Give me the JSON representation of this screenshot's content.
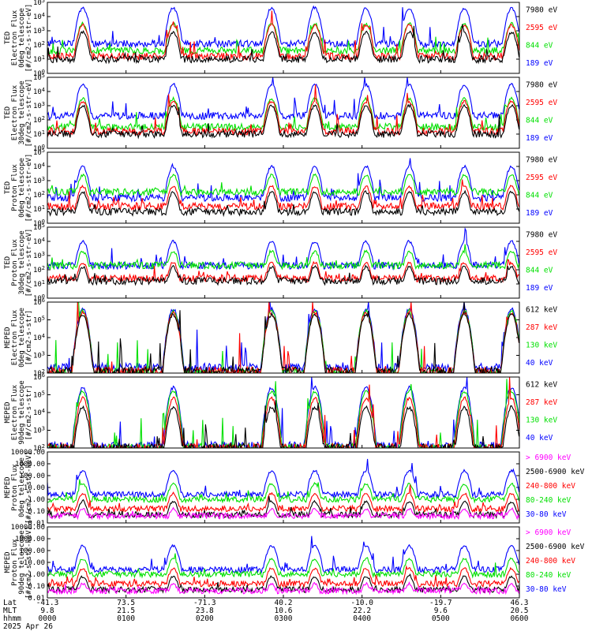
{
  "palette": {
    "blue": "#0000ff",
    "red": "#ff0000",
    "green": "#00e000",
    "black": "#000000",
    "magenta": "#ff00ff"
  },
  "chart_data": [
    {
      "type": "line",
      "id": "p1",
      "ylabel": [
        "TED",
        "Electron Flux",
        "0deg telescope",
        "[#/cm2-s-str-eV]"
      ],
      "yticks": [
        "10^0",
        "10^1",
        "10^2",
        "10^3",
        "10^4",
        "10^5"
      ],
      "series": [
        {
          "name": "7980 eV",
          "color": "#000000",
          "base": 1.0,
          "peak": 2.9
        },
        {
          "name": "2595 eV",
          "color": "#ff0000",
          "base": 1.2,
          "peak": 3.4
        },
        {
          "name": "844 eV",
          "color": "#00e000",
          "base": 1.6,
          "peak": 3.5
        },
        {
          "name": "189 eV",
          "color": "#0000ff",
          "base": 2.1,
          "peak": 4.6
        }
      ]
    },
    {
      "type": "line",
      "id": "p2",
      "ylabel": [
        "TED",
        "Electron Flux",
        "30deg telescope",
        "[#/cm2-s-str-eV]"
      ],
      "yticks": [
        "10^0",
        "10^1",
        "10^2",
        "10^3",
        "10^4",
        "10^5"
      ],
      "series": [
        {
          "name": "7980 eV",
          "color": "#000000",
          "base": 1.0,
          "peak": 3.0
        },
        {
          "name": "2595 eV",
          "color": "#ff0000",
          "base": 1.2,
          "peak": 3.3
        },
        {
          "name": "844 eV",
          "color": "#00e000",
          "base": 1.5,
          "peak": 3.5
        },
        {
          "name": "189 eV",
          "color": "#0000ff",
          "base": 2.3,
          "peak": 4.5
        }
      ]
    },
    {
      "type": "line",
      "id": "p3",
      "ylabel": [
        "TED",
        "Proton Flux",
        "0deg telescope",
        "[#/cm2-s-str-eV]"
      ],
      "yticks": [
        "10^0",
        "10^1",
        "10^2",
        "10^3",
        "10^4",
        "10^5"
      ],
      "series": [
        {
          "name": "7980 eV",
          "color": "#000000",
          "base": 0.8,
          "peak": 2.2
        },
        {
          "name": "2595 eV",
          "color": "#ff0000",
          "base": 1.2,
          "peak": 2.6
        },
        {
          "name": "844 eV",
          "color": "#00e000",
          "base": 2.2,
          "peak": 3.4
        },
        {
          "name": "189 eV",
          "color": "#0000ff",
          "base": 1.8,
          "peak": 4.0
        }
      ]
    },
    {
      "type": "line",
      "id": "p4",
      "ylabel": [
        "TED",
        "Proton Flux",
        "30deg telescope",
        "[#/cm2-s-str-eV]"
      ],
      "yticks": [
        "10^0",
        "10^1",
        "10^2",
        "10^3",
        "10^4",
        "10^5"
      ],
      "series": [
        {
          "name": "7980 eV",
          "color": "#000000",
          "base": 1.2,
          "peak": 2.2
        },
        {
          "name": "2595 eV",
          "color": "#ff0000",
          "base": 1.4,
          "peak": 2.5
        },
        {
          "name": "844 eV",
          "color": "#00e000",
          "base": 2.3,
          "peak": 3.3
        },
        {
          "name": "189 eV",
          "color": "#0000ff",
          "base": 2.3,
          "peak": 4.0
        }
      ]
    },
    {
      "type": "line",
      "id": "p5",
      "ylabel": [
        "MEPED",
        "Electron Flux",
        "0deg telescope",
        "[#/cm2-s-str]"
      ],
      "yticks": [
        "10^2",
        "10^3",
        "10^4",
        "10^5",
        "10^6"
      ],
      "series": [
        {
          "name": "612 keV",
          "color": "#000000",
          "base": 2.1,
          "peak": 5.3
        },
        {
          "name": "287 keV",
          "color": "#ff0000",
          "base": 2.1,
          "peak": 5.4
        },
        {
          "name": "130 keV",
          "color": "#00e000",
          "base": 2.0,
          "peak": 5.5
        },
        {
          "name": "40 keV",
          "color": "#0000ff",
          "base": 2.3,
          "peak": 5.6
        }
      ]
    },
    {
      "type": "line",
      "id": "p6",
      "ylabel": [
        "MEPED",
        "Electron Flux",
        "90deg telescope",
        "[#/cm2-s-str]"
      ],
      "yticks": [
        "10^2",
        "10^3",
        "10^4",
        "10^5",
        "10^6"
      ],
      "series": [
        {
          "name": "612 keV",
          "color": "#000000",
          "base": 2.0,
          "peak": 4.3
        },
        {
          "name": "287 keV",
          "color": "#ff0000",
          "base": 2.0,
          "peak": 4.8
        },
        {
          "name": "130 keV",
          "color": "#00e000",
          "base": 2.0,
          "peak": 5.2
        },
        {
          "name": "40 keV",
          "color": "#0000ff",
          "base": 2.1,
          "peak": 5.4
        }
      ]
    },
    {
      "type": "line",
      "id": "p7",
      "ylabel": [
        "MEPED",
        "Proton Flux",
        "0deg telescope",
        "[#/cm2-s-str-keV]"
      ],
      "yticks": [
        "0.01",
        "0.10",
        "1.00",
        "10.00",
        "100.00",
        "1000.00",
        "10000.00"
      ],
      "series": [
        {
          "name": "> 6900 keV",
          "color": "#ff00ff",
          "base": -1.4,
          "peak": -0.8
        },
        {
          "name": "2500-6900 keV",
          "color": "#000000",
          "base": -1.3,
          "peak": -0.2
        },
        {
          "name": "240-800 keV",
          "color": "#ff0000",
          "base": -0.8,
          "peak": 0.5
        },
        {
          "name": "80-240 keV",
          "color": "#00e000",
          "base": 0.0,
          "peak": 1.3
        },
        {
          "name": "30-80 keV",
          "color": "#0000ff",
          "base": 0.4,
          "peak": 2.4
        }
      ]
    },
    {
      "type": "line",
      "id": "p8",
      "ylabel": [
        "MEPED",
        "Proton Flux",
        "90deg telescope",
        "[#/cm2-s-str-keV]"
      ],
      "yticks": [
        "0.01",
        "0.10",
        "1.00",
        "10.00",
        "100.00",
        "1000.00",
        "10000.00"
      ],
      "series": [
        {
          "name": "> 6900 keV",
          "color": "#ff00ff",
          "base": -1.4,
          "peak": -0.8
        },
        {
          "name": "2500-6900 keV",
          "color": "#000000",
          "base": -1.3,
          "peak": -0.2
        },
        {
          "name": "240-800 keV",
          "color": "#ff0000",
          "base": -0.8,
          "peak": 0.5
        },
        {
          "name": "80-240 keV",
          "color": "#00e000",
          "base": 0.0,
          "peak": 1.3
        },
        {
          "name": "30-80 keV",
          "color": "#0000ff",
          "base": 0.4,
          "peak": 2.4
        }
      ]
    }
  ],
  "passes_hours": [
    0.45,
    1.6,
    2.85,
    3.4,
    4.05,
    4.6,
    5.3,
    5.9
  ],
  "x_axis": {
    "row_labels": [
      "Lat",
      "MLT",
      "hhmm"
    ],
    "ticks": [
      {
        "lat": "-41.3",
        "mlt": "9.8",
        "hhmm": "0000"
      },
      {
        "lat": "73.5",
        "mlt": "21.5",
        "hhmm": "0100"
      },
      {
        "lat": "-71.3",
        "mlt": "23.8",
        "hhmm": "0200"
      },
      {
        "lat": "40.2",
        "mlt": "10.6",
        "hhmm": "0300"
      },
      {
        "lat": "-10.0",
        "mlt": "22.2",
        "hhmm": "0400"
      },
      {
        "lat": "-19.7",
        "mlt": "9.6",
        "hhmm": "0500"
      },
      {
        "lat": "46.3",
        "mlt": "20.5",
        "hhmm": "0600"
      }
    ],
    "date": "2025 Apr 26"
  }
}
